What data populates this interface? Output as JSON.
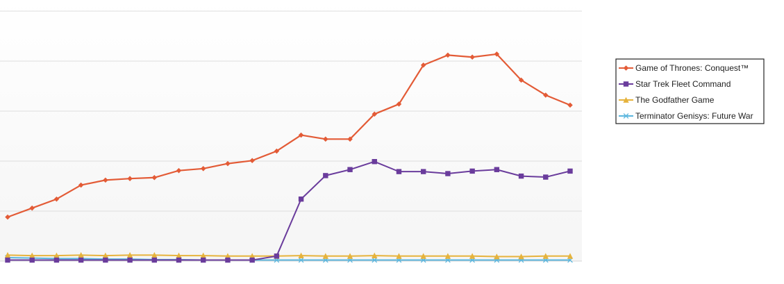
{
  "chart_data": {
    "type": "line",
    "title": "",
    "xlabel": "",
    "ylabel": "",
    "x": [
      1,
      2,
      3,
      4,
      5,
      6,
      7,
      8,
      9,
      10,
      11,
      12,
      13,
      14,
      15,
      16,
      17,
      18,
      19,
      20,
      21,
      22,
      23,
      24
    ],
    "ylim": [
      0,
      5
    ],
    "grid": true,
    "legend_position": "right",
    "series": [
      {
        "name": "Game of Thrones: Conquest™",
        "color": "#e35b36",
        "marker": "diamond",
        "values": [
          0.88,
          1.06,
          1.24,
          1.52,
          1.62,
          1.65,
          1.67,
          1.81,
          1.85,
          1.95,
          2.01,
          2.2,
          2.52,
          2.44,
          2.44,
          2.94,
          3.14,
          3.92,
          4.12,
          4.08,
          4.14,
          3.62,
          3.32,
          3.12
        ]
      },
      {
        "name": "Star Trek Fleet Command",
        "color": "#6a3c9c",
        "marker": "square",
        "values": [
          0.02,
          0.02,
          0.02,
          0.02,
          0.02,
          0.02,
          0.02,
          0.02,
          0.02,
          0.02,
          0.02,
          0.1,
          1.24,
          1.71,
          1.83,
          1.99,
          1.79,
          1.79,
          1.75,
          1.8,
          1.83,
          1.7,
          1.68,
          1.8
        ]
      },
      {
        "name": "The Godfather Game",
        "color": "#e6b33c",
        "marker": "triangle",
        "values": [
          0.12,
          0.11,
          0.11,
          0.12,
          0.11,
          0.12,
          0.12,
          0.11,
          0.11,
          0.1,
          0.1,
          0.1,
          0.11,
          0.1,
          0.1,
          0.11,
          0.1,
          0.1,
          0.1,
          0.1,
          0.09,
          0.09,
          0.1,
          0.1
        ]
      },
      {
        "name": "Terminator Genisys: Future War",
        "color": "#5bb6de",
        "marker": "x",
        "values": [
          0.07,
          0.06,
          0.05,
          0.05,
          0.04,
          0.04,
          0.03,
          0.03,
          0.02,
          0.02,
          0.02,
          0.02,
          0.02,
          0.02,
          0.02,
          0.02,
          0.02,
          0.02,
          0.02,
          0.02,
          0.02,
          0.02,
          0.02,
          0.02
        ]
      }
    ]
  }
}
